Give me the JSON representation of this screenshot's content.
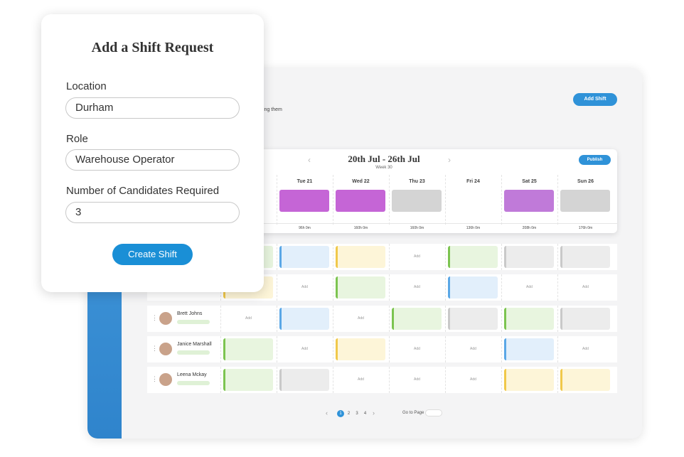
{
  "form": {
    "title": "Add a Shift Request",
    "fields": [
      {
        "label": "Location",
        "value": "Durham"
      },
      {
        "label": "Role",
        "value": "Warehouse Operator"
      },
      {
        "label": "Number of Candidates Required",
        "value": "3"
      }
    ],
    "button": "Create Shift"
  },
  "schedule": {
    "add_shift": "Add Shift",
    "subtitle_fragment": "ing them",
    "week_range": "20th Jul - 26th Jul",
    "week": "Week 30",
    "publish": "Publish",
    "days": [
      "Tue 21",
      "Wed 22",
      "Thu 23",
      "Fri 24",
      "Sat 25",
      "Sun 26"
    ],
    "day_shift_colors": [
      "#c565d6",
      "#c565d6",
      "#d4d4d4",
      null,
      "#c07ad9",
      "#d4d4d4"
    ],
    "hours": [
      "96h 0m",
      "160h 0m",
      "160h 0m",
      "136h 0m",
      "208h 0m",
      "176h 0m"
    ],
    "rows": [
      {
        "cells": [
          {
            "color": "green"
          },
          {
            "color": "blue"
          },
          {
            "color": "yellow"
          },
          {
            "label": "Add"
          },
          {
            "color": "green"
          },
          {
            "color": "gray"
          },
          {
            "color": "gray"
          }
        ]
      },
      {
        "cells": [
          {
            "color": "yellow"
          },
          {
            "label": "Add"
          },
          {
            "color": "green"
          },
          {
            "label": "Add"
          },
          {
            "color": "blue"
          },
          {
            "label": "Add"
          },
          {
            "label": "Add"
          }
        ]
      },
      {
        "name": "Brett Johns",
        "cells": [
          {
            "label": "Add"
          },
          {
            "color": "blue"
          },
          {
            "label": "Add"
          },
          {
            "color": "green"
          },
          {
            "color": "gray"
          },
          {
            "color": "green"
          },
          {
            "color": "gray"
          }
        ]
      },
      {
        "name": "Janice Marshall",
        "cells": [
          {
            "color": "green"
          },
          {
            "label": "Add"
          },
          {
            "color": "yellow"
          },
          {
            "label": "Add"
          },
          {
            "label": "Add"
          },
          {
            "color": "blue"
          },
          {
            "label": "Add"
          }
        ]
      },
      {
        "name": "Leena Mckay",
        "cells": [
          {
            "color": "green"
          },
          {
            "color": "gray"
          },
          {
            "label": "Add"
          },
          {
            "label": "Add"
          },
          {
            "label": "Add"
          },
          {
            "color": "yellow"
          },
          {
            "color": "yellow"
          }
        ]
      }
    ],
    "pages": [
      "1",
      "2",
      "3",
      "4"
    ],
    "go_to_page": "Go to Page"
  }
}
